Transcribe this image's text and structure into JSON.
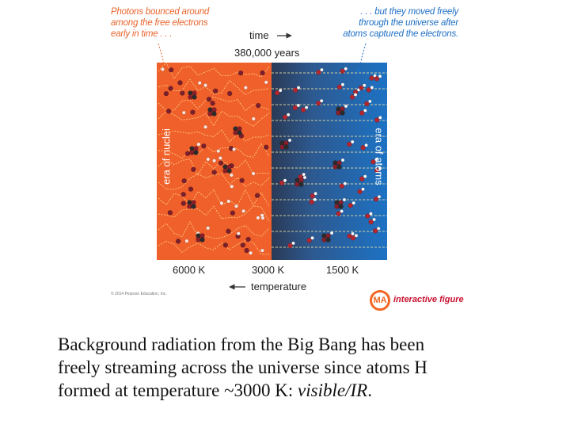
{
  "annotations": {
    "left_note": [
      "Photons bounced around",
      "among the free electrons",
      "early in time . . ."
    ],
    "right_note": [
      ". . . but they moved freely",
      "through the universe after",
      "atoms captured the electrons."
    ]
  },
  "time_axis": {
    "label": "time",
    "event": "380,000 years"
  },
  "temperature_axis": {
    "label": "temperature",
    "ticks": [
      "6000 K",
      "3000 K",
      "1500 K"
    ]
  },
  "panels": {
    "left_label": "era of nuclei",
    "right_label": "era of atoms"
  },
  "colors": {
    "nuclei_era": "#f0602a",
    "atoms_era": "#1d72c4",
    "note_left": "#e8642c",
    "note_right": "#1f6fc5"
  },
  "copyright": "© 2014 Pearson Education, Inc.",
  "badge": {
    "logo": "MA",
    "label": "interactive figure"
  },
  "caption": {
    "lines": [
      "Background radiation from the Big Bang has been",
      "freely streaming across the universe since atoms H",
      "formed at temperature ~3000 K: "
    ],
    "emphasis": "visible/IR",
    "end": "."
  }
}
